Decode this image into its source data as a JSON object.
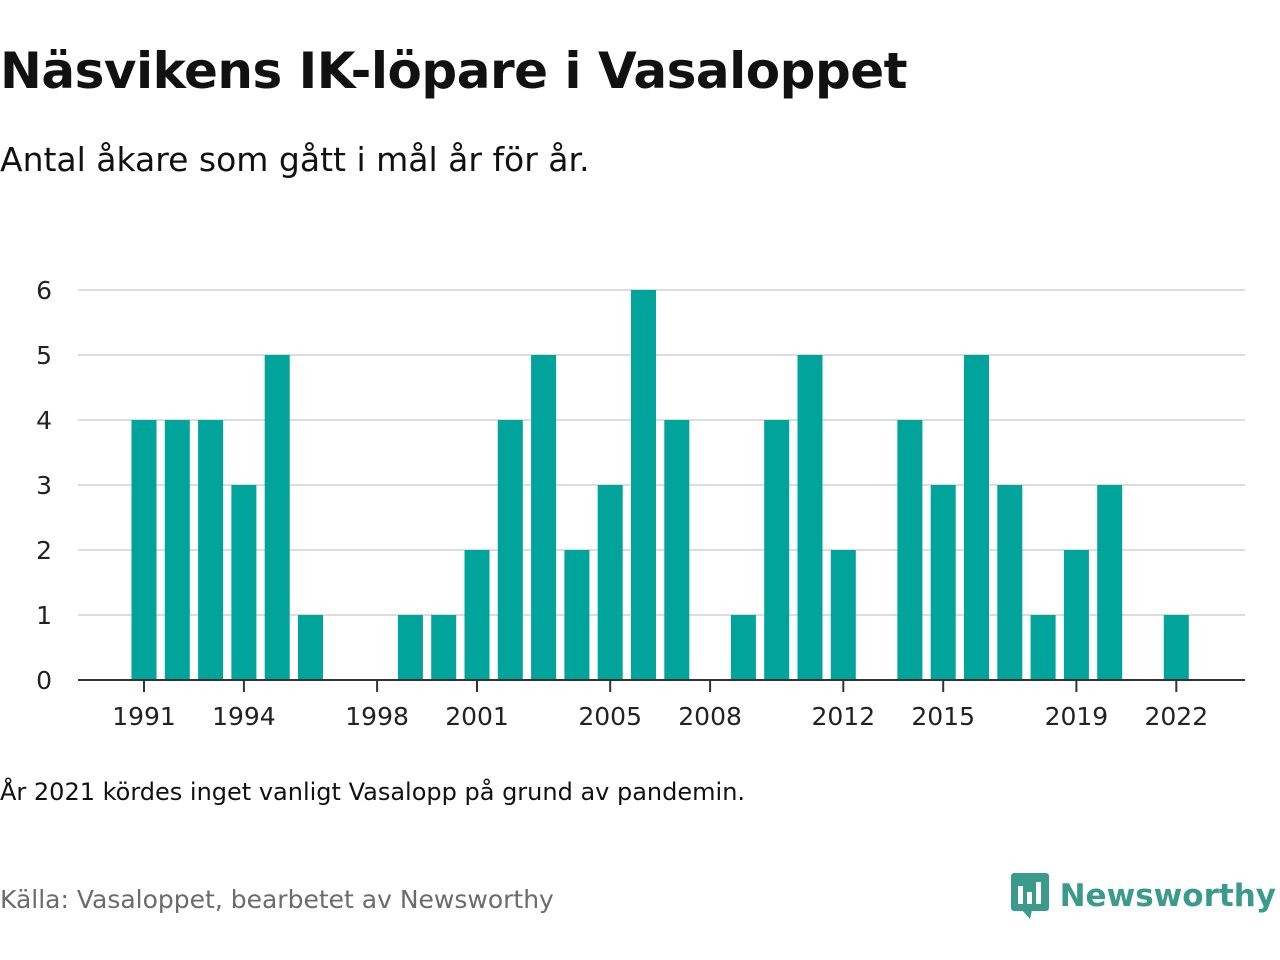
{
  "header": {
    "title": "Näsvikens IK-löpare i Vasaloppet",
    "subtitle": "Antal åkare som gått i mål år för år."
  },
  "footer": {
    "note": "År 2021 kördes inget vanligt Vasalopp på grund av pandemin.",
    "source": "Källa: Vasaloppet, bearbetet av Newsworthy",
    "brand": "Newsworthy",
    "brand_icon": "newsworthy-logo-icon"
  },
  "colors": {
    "bar": "#00a49a",
    "grid": "#dddddd",
    "axis": "#333333",
    "brand": "#3a9a8c"
  },
  "chart_data": {
    "type": "bar",
    "categories": [
      1991,
      1992,
      1993,
      1994,
      1995,
      1996,
      1997,
      1998,
      1999,
      2000,
      2001,
      2002,
      2003,
      2004,
      2005,
      2006,
      2007,
      2008,
      2009,
      2010,
      2011,
      2012,
      2013,
      2014,
      2015,
      2016,
      2017,
      2018,
      2019,
      2020,
      2021,
      2022,
      2023
    ],
    "values": [
      4,
      4,
      4,
      3,
      5,
      1,
      0,
      0,
      1,
      1,
      2,
      4,
      5,
      2,
      3,
      6,
      4,
      0,
      1,
      4,
      5,
      2,
      0,
      4,
      3,
      5,
      3,
      1,
      2,
      3,
      0,
      1,
      0
    ],
    "x_tick_labels": [
      "1991",
      "1994",
      "1998",
      "2001",
      "2005",
      "2008",
      "2012",
      "2015",
      "2019",
      "2022"
    ],
    "y_ticks": [
      "0",
      "1",
      "2",
      "3",
      "4",
      "5",
      "6"
    ],
    "ylim": [
      0,
      6
    ],
    "grid": true,
    "legend": "none",
    "title": "Näsvikens IK-löpare i Vasaloppet",
    "subtitle": "Antal åkare som gått i mål år för år.",
    "xlabel": "",
    "ylabel": ""
  }
}
